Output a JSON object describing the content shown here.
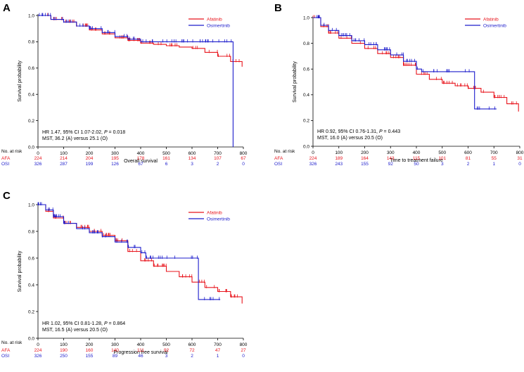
{
  "chart_data": [
    {
      "panel": "A",
      "type": "line",
      "subtype": "kaplan-meier",
      "xlabel": "Overall survival",
      "ylabel": "Survival probability",
      "xlim": [
        0,
        800
      ],
      "ylim": [
        0,
        1.0
      ],
      "xticks": [
        "0",
        "100",
        "200",
        "300",
        "400",
        "500",
        "600",
        "700",
        "800"
      ],
      "yticks": [
        "0.0",
        "0.2",
        "0.4",
        "0.6",
        "0.8",
        "1.0"
      ],
      "legend": [
        "Afatinib",
        "Osimertinib"
      ],
      "annotation_line1_pre": "HR 1.47, 95% CI 1.07-2.02, ",
      "annotation_p": "P",
      "annotation_line1_post": " = 0.018",
      "annotation_line2": "MST, 36.2 (A) versus 25.1 (O)",
      "risk_title": "No. at risk",
      "risk_labels": [
        "AFA",
        "OSI"
      ],
      "risk_afa": [
        "224",
        "214",
        "204",
        "195",
        "178",
        "161",
        "134",
        "107",
        "67"
      ],
      "risk_osi": [
        "326",
        "287",
        "199",
        "126",
        "67",
        "6",
        "3",
        "2",
        "0"
      ],
      "series": [
        {
          "name": "Afatinib",
          "color": "#e8141c",
          "points": [
            [
              0,
              1.0
            ],
            [
              50,
              0.97
            ],
            [
              100,
              0.95
            ],
            [
              150,
              0.92
            ],
            [
              200,
              0.89
            ],
            [
              250,
              0.86
            ],
            [
              300,
              0.83
            ],
            [
              350,
              0.81
            ],
            [
              400,
              0.79
            ],
            [
              450,
              0.78
            ],
            [
              500,
              0.77
            ],
            [
              550,
              0.76
            ],
            [
              600,
              0.75
            ],
            [
              650,
              0.72
            ],
            [
              700,
              0.69
            ],
            [
              750,
              0.65
            ],
            [
              795,
              0.61
            ]
          ]
        },
        {
          "name": "Osimertinib",
          "color": "#1c1ccc",
          "points": [
            [
              0,
              1.0
            ],
            [
              50,
              0.97
            ],
            [
              100,
              0.95
            ],
            [
              150,
              0.92
            ],
            [
              200,
              0.9
            ],
            [
              250,
              0.87
            ],
            [
              300,
              0.84
            ],
            [
              350,
              0.82
            ],
            [
              400,
              0.8
            ],
            [
              500,
              0.8
            ],
            [
              760,
              0.8
            ],
            [
              760,
              0.0
            ]
          ]
        }
      ]
    },
    {
      "panel": "B",
      "type": "line",
      "subtype": "kaplan-meier",
      "xlabel": "Time to treatment failure",
      "ylabel": "Survival probability",
      "xlim": [
        0,
        800
      ],
      "ylim": [
        0,
        1.0
      ],
      "xticks": [
        "0",
        "100",
        "200",
        "300",
        "400",
        "500",
        "600",
        "700",
        "800"
      ],
      "yticks": [
        "0.0",
        "0.2",
        "0.4",
        "0.6",
        "0.8",
        "1.0"
      ],
      "legend": [
        "Afatinib",
        "Osimertinib"
      ],
      "annotation_line1_pre": "HR 0.92, 95% CI 0.76-1.31, ",
      "annotation_p": "P",
      "annotation_line1_post": " = 0.443",
      "annotation_line2": "MST, 16.0 (A) versus 20.5 (O)",
      "risk_title": "No. at risk",
      "risk_labels": [
        "AFA",
        "OSI"
      ],
      "risk_afa": [
        "224",
        "189",
        "164",
        "143",
        "115",
        "101",
        "81",
        "55",
        "31"
      ],
      "risk_osi": [
        "326",
        "243",
        "155",
        "92",
        "50",
        "3",
        "2",
        "1",
        "0"
      ],
      "series": [
        {
          "name": "Afatinib",
          "color": "#e8141c",
          "points": [
            [
              0,
              1.0
            ],
            [
              30,
              0.93
            ],
            [
              60,
              0.88
            ],
            [
              100,
              0.84
            ],
            [
              150,
              0.8
            ],
            [
              200,
              0.76
            ],
            [
              250,
              0.72
            ],
            [
              300,
              0.69
            ],
            [
              350,
              0.63
            ],
            [
              400,
              0.56
            ],
            [
              450,
              0.52
            ],
            [
              500,
              0.49
            ],
            [
              550,
              0.47
            ],
            [
              600,
              0.45
            ],
            [
              650,
              0.42
            ],
            [
              700,
              0.38
            ],
            [
              750,
              0.33
            ],
            [
              795,
              0.27
            ]
          ]
        },
        {
          "name": "Osimertinib",
          "color": "#1c1ccc",
          "points": [
            [
              0,
              1.0
            ],
            [
              30,
              0.94
            ],
            [
              60,
              0.9
            ],
            [
              100,
              0.86
            ],
            [
              150,
              0.82
            ],
            [
              200,
              0.79
            ],
            [
              250,
              0.75
            ],
            [
              300,
              0.71
            ],
            [
              350,
              0.66
            ],
            [
              400,
              0.6
            ],
            [
              420,
              0.58
            ],
            [
              625,
              0.58
            ],
            [
              625,
              0.29
            ],
            [
              710,
              0.29
            ]
          ]
        }
      ]
    },
    {
      "panel": "C",
      "type": "line",
      "subtype": "kaplan-meier",
      "xlabel": "Progression free survival",
      "ylabel": "Survival probability",
      "xlim": [
        0,
        800
      ],
      "ylim": [
        0,
        1.0
      ],
      "xticks": [
        "0",
        "100",
        "200",
        "300",
        "400",
        "500",
        "600",
        "700",
        "800"
      ],
      "yticks": [
        "0.0",
        "0.2",
        "0.4",
        "0.6",
        "0.8",
        "1.0"
      ],
      "legend": [
        "Afatinib",
        "Osimertinib"
      ],
      "annotation_line1_pre": "HR 1.02, 95% CI 0.81-1.28, ",
      "annotation_p": "P",
      "annotation_line1_post": " = 0.864",
      "annotation_line2": "MST, 16.5 (A) versus 20.5 (O)",
      "risk_title": "No. at risk",
      "risk_labels": [
        "AFA",
        "OSI"
      ],
      "risk_afa": [
        "224",
        "190",
        "160",
        "140",
        "111",
        "92",
        "72",
        "47",
        "27"
      ],
      "risk_osi": [
        "326",
        "250",
        "155",
        "89",
        "46",
        "3",
        "2",
        "1",
        "0"
      ],
      "series": [
        {
          "name": "Afatinib",
          "color": "#e8141c",
          "points": [
            [
              0,
              1.0
            ],
            [
              30,
              0.95
            ],
            [
              60,
              0.9
            ],
            [
              100,
              0.86
            ],
            [
              150,
              0.83
            ],
            [
              200,
              0.8
            ],
            [
              250,
              0.77
            ],
            [
              300,
              0.73
            ],
            [
              350,
              0.65
            ],
            [
              400,
              0.58
            ],
            [
              450,
              0.54
            ],
            [
              500,
              0.5
            ],
            [
              550,
              0.46
            ],
            [
              600,
              0.42
            ],
            [
              650,
              0.38
            ],
            [
              700,
              0.35
            ],
            [
              750,
              0.31
            ],
            [
              795,
              0.26
            ]
          ]
        },
        {
          "name": "Osimertinib",
          "color": "#1c1ccc",
          "points": [
            [
              0,
              1.0
            ],
            [
              30,
              0.96
            ],
            [
              60,
              0.91
            ],
            [
              100,
              0.86
            ],
            [
              150,
              0.82
            ],
            [
              200,
              0.79
            ],
            [
              250,
              0.76
            ],
            [
              300,
              0.72
            ],
            [
              350,
              0.68
            ],
            [
              400,
              0.64
            ],
            [
              420,
              0.6
            ],
            [
              625,
              0.6
            ],
            [
              625,
              0.29
            ],
            [
              710,
              0.29
            ]
          ]
        }
      ]
    }
  ]
}
